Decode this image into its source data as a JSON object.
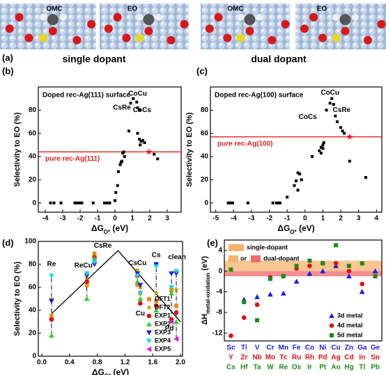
{
  "panel_a": {
    "label": "(a)",
    "images": [
      "OMC",
      "EO",
      "OMC",
      "EO"
    ],
    "groups": [
      "single dopant",
      "dual dopant"
    ]
  },
  "chart_data": [
    {
      "type": "scatter",
      "label": "(b)",
      "title": "Doped rec-Ag(111) surface",
      "xlabel": [
        "ΔG",
        "O*",
        " (eV)"
      ],
      "ylabel": "Selectivity to EO (%)",
      "xlim": [
        -4.4,
        3.8
      ],
      "xticks": [
        -4,
        -3,
        -2,
        -1,
        0,
        1,
        2,
        3
      ],
      "ylim": [
        -8,
        100
      ],
      "yticks": [
        0,
        20,
        40,
        60,
        80
      ],
      "series": [
        {
          "color": "#000000",
          "marker": "square",
          "x": [
            -3.7,
            -3.5,
            -3.1,
            -2.3,
            -2.15,
            -2.0,
            -1.9,
            -1.25,
            -0.6,
            -0.45,
            -0.3,
            0.0,
            0.05,
            0.15,
            0.2,
            0.3,
            0.35,
            0.4,
            0.45,
            0.5,
            0.55,
            0.8,
            0.9,
            1.05,
            1.25,
            1.3,
            1.4,
            1.3,
            1.4,
            1.5,
            1.45,
            1.6,
            1.7,
            2.25,
            2.45
          ],
          "values": [
            0,
            0,
            0,
            0,
            0,
            0,
            0,
            0,
            0,
            0,
            0,
            2,
            9,
            15,
            27,
            33,
            35,
            36,
            43,
            44,
            40,
            62,
            86,
            90,
            87,
            82,
            80,
            60,
            55,
            53,
            50,
            54,
            52,
            42,
            38
          ]
        }
      ],
      "annotations": [
        "CsRe",
        "CoCu",
        "CoCs"
      ],
      "reference": {
        "name": "pure rec-Ag(111)",
        "value": 44,
        "color": "#e02020"
      },
      "star": {
        "x": 1.95,
        "value": 44
      }
    },
    {
      "type": "scatter",
      "label": "(c)",
      "title": "Doped rec-Ag(100) surface",
      "xlabel": [
        "ΔG",
        "O*",
        " (eV)"
      ],
      "ylabel": "Selectivity to EO (%)",
      "xlim": [
        -5.3,
        4.3
      ],
      "xticks": [
        -5,
        -4,
        -3,
        -2,
        -1,
        0,
        1,
        2,
        3,
        4
      ],
      "ylim": [
        -8,
        100
      ],
      "yticks": [
        0,
        20,
        40,
        60,
        80
      ],
      "series": [
        {
          "color": "#000000",
          "marker": "square",
          "x": [
            -4.3,
            -4.2,
            -4.05,
            -3.2,
            -1.8,
            -1.6,
            -1.5,
            -1.4,
            -1.0,
            -0.6,
            -0.5,
            -0.4,
            -0.4,
            -0.3,
            -0.2,
            0.4,
            0.8,
            0.9,
            0.9,
            1.0,
            1.0,
            1.05,
            1.2,
            1.4,
            1.5,
            1.6,
            1.7,
            1.8,
            2.0,
            2.1,
            2.2,
            2.5,
            3.4
          ],
          "values": [
            0,
            0,
            0,
            0,
            0,
            0,
            0,
            0,
            5,
            15,
            19,
            11,
            26,
            25,
            20,
            40,
            45,
            43,
            48,
            50,
            47,
            52,
            80,
            86,
            90,
            85,
            75,
            70,
            65,
            62,
            60,
            36,
            22
          ]
        }
      ],
      "annotations": [
        "CoCu",
        "CsRe",
        "CoCs"
      ],
      "reference": {
        "name": "pure rec-Ag(100)",
        "value": 57,
        "color": "#e02020"
      },
      "star": {
        "x": 2.5,
        "value": 57
      }
    },
    {
      "type": "scatter",
      "label": "(d)",
      "xlabel": [
        "ΔG",
        "O*",
        " (eV)"
      ],
      "ylabel": "Selectivity to EO (%)",
      "xlim": [
        -0.05,
        2.03
      ],
      "xticks": [
        {
          "value": 0,
          "label": "0.0"
        },
        0.4,
        0.8,
        1.2,
        1.6,
        {
          "value": 2,
          "label": "2.0"
        }
      ],
      "ylim": [
        0,
        100
      ],
      "yticks": [
        0,
        20,
        40,
        60,
        80,
        100
      ],
      "x": [
        0.14,
        0.65,
        0.76,
        1.38,
        1.42,
        1.65,
        1.87,
        1.94
      ],
      "point_labels": [
        "Re",
        "ReCu",
        "CsRe",
        "CsCu",
        "Cu",
        "Cs",
        "Pd",
        "clean"
      ],
      "trend": {
        "x": [
          0.14,
          1.1,
          2.0
        ],
        "values": [
          37,
          92,
          30
        ],
        "color": "#000000"
      },
      "series": [
        {
          "name": "DFT1",
          "color": "#f08c1a",
          "marker": "square",
          "values": [
            35,
            62,
            88,
            62,
            55,
            48,
            58,
            44
          ]
        },
        {
          "name": "DFT2",
          "color": "#b8a000",
          "marker": "star",
          "values": [
            50,
            68,
            90,
            75,
            60,
            55,
            56,
            58
          ]
        },
        {
          "name": "EXP1",
          "color": "#e01010",
          "marker": "circle",
          "values": [
            32,
            65,
            86,
            70,
            46,
            44,
            32,
            38
          ]
        },
        {
          "name": "EXP2",
          "color": "#33cc33",
          "marker": "triangle-up",
          "values": [
            18,
            50,
            85,
            65,
            50,
            40,
            55,
            30
          ]
        },
        {
          "name": "EXP3",
          "color": "#1a1ae6",
          "marker": "triangle-down",
          "values": [
            48,
            70,
            80,
            72,
            62,
            80,
            72,
            72
          ]
        },
        {
          "name": "EXP4",
          "color": "#1ad6e6",
          "marker": "triangle-down",
          "values": [
            70,
            72,
            82,
            70,
            55,
            78,
            60,
            74
          ]
        },
        {
          "name": "EXP5",
          "color": "#e61ae6",
          "marker": "triangle-left",
          "values": [
            null,
            null,
            null,
            null,
            null,
            null,
            30,
            15
          ]
        }
      ]
    },
    {
      "type": "scatter",
      "label": "(e)",
      "ylabel": [
        "ΔH",
        "metal-oxidation",
        " (eV)"
      ],
      "ylim": [
        -13.5,
        6
      ],
      "yticks": [
        -12,
        -8,
        -4,
        0,
        4
      ],
      "bands": [
        {
          "name": "single-dopant",
          "from": 0,
          "to": 2,
          "color": "#f7b26e"
        },
        {
          "name": "dual-dopant",
          "from": -1,
          "to": 0,
          "color": "#f06a6a"
        }
      ],
      "legend_joiner": "or",
      "series": [
        {
          "name": "3d metal",
          "color": "#1a1ae6",
          "marker": "triangle-up",
          "categories": [
            "Sc",
            "Ti",
            "V",
            "Cr",
            "Mn",
            "Fe",
            "Co",
            "Ni",
            "Cu",
            "Zn",
            "Ga",
            "Ge"
          ],
          "values": [
            null,
            -5.5,
            -5,
            -4.5,
            -4.3,
            -2,
            -0.5,
            0,
            1,
            -1,
            -4,
            0
          ]
        },
        {
          "name": "4d metal",
          "color": "#e01010",
          "marker": "circle",
          "categories": [
            "Y",
            "Zr",
            "Nb",
            "Mo",
            "Tc",
            "Ru",
            "Rh",
            "Pd",
            "Ag",
            "Cd",
            "In",
            "Sn"
          ],
          "values": [
            -12.5,
            -9,
            -6.5,
            -1.2,
            -1,
            0.5,
            1,
            1.5,
            1.5,
            0,
            -2.5,
            -1
          ]
        },
        {
          "name": "5d metal",
          "color": "#1a8c1a",
          "marker": "square",
          "categories": [
            "Cs",
            "Hf",
            "Ta",
            "W",
            "Re",
            "Os",
            "Ir",
            "Pt",
            "Au",
            "Hg",
            "Tl",
            "Pb"
          ],
          "values": [
            0.3,
            -6,
            -9.5,
            -1.5,
            -1,
            1,
            2,
            1.5,
            5,
            1,
            1.5,
            -1
          ]
        }
      ]
    }
  ]
}
